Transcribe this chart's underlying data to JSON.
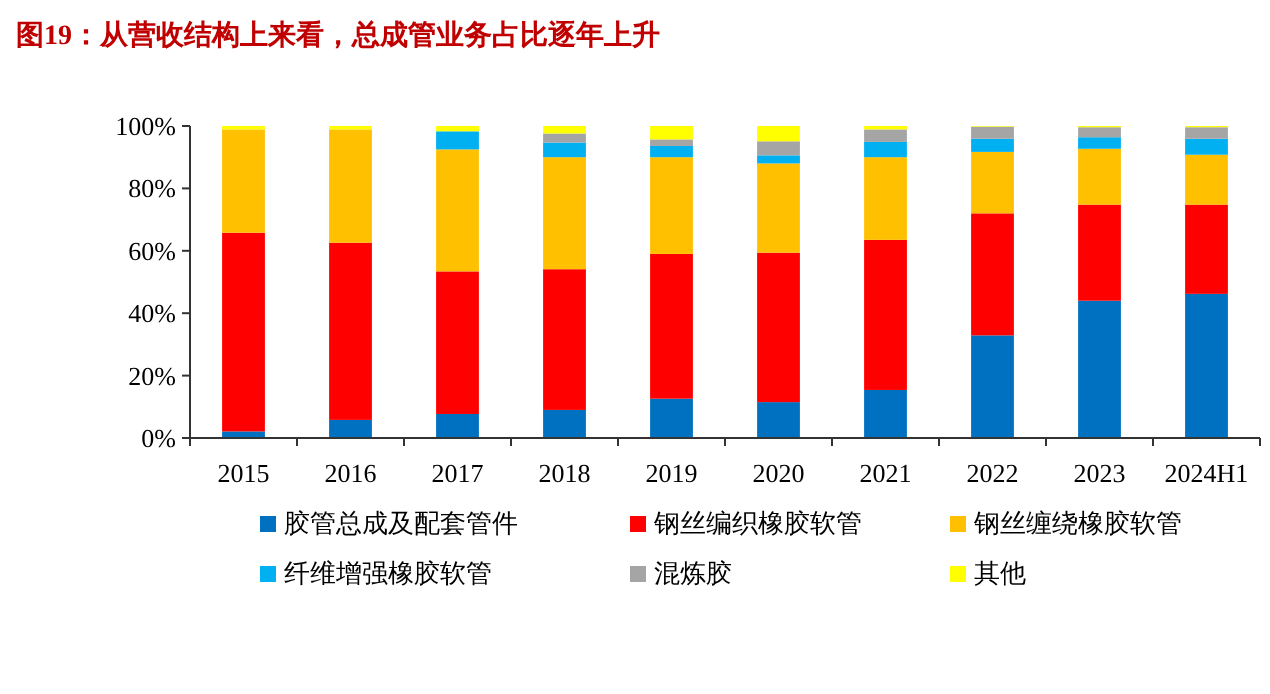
{
  "chart_data": {
    "type": "bar",
    "title": "图19：从营收结构上来看，总成管业务占比逐年上升",
    "categories": [
      "2015",
      "2016",
      "2017",
      "2018",
      "2019",
      "2020",
      "2021",
      "2022",
      "2023",
      "2024H1"
    ],
    "stacked": true,
    "legend": "bottom",
    "ylim": [
      0,
      100
    ],
    "yticks": [
      {
        "value": 0,
        "label": "0%"
      },
      {
        "value": 20,
        "label": "20%"
      },
      {
        "value": 40,
        "label": "40%"
      },
      {
        "value": 60,
        "label": "60%"
      },
      {
        "value": 80,
        "label": "80%"
      },
      {
        "value": 100,
        "label": "100%"
      }
    ],
    "series": [
      {
        "name": "胶管总成及配套管件",
        "color": "#0070c0",
        "values": [
          2.1,
          5.8,
          7.7,
          9.0,
          12.6,
          11.5,
          15.4,
          32.9,
          44.0,
          46.2
        ]
      },
      {
        "name": "钢丝编织橡胶软管",
        "color": "#ff0000",
        "values": [
          63.7,
          56.8,
          45.7,
          45.1,
          46.4,
          47.9,
          48.1,
          39.1,
          30.8,
          28.6
        ]
      },
      {
        "name": "钢丝缠绕橡胶软管",
        "color": "#ffc000",
        "values": [
          33.1,
          36.3,
          39.1,
          35.9,
          31.0,
          28.6,
          26.5,
          19.7,
          17.9,
          16.0
        ]
      },
      {
        "name": "纤维增强橡胶软管",
        "color": "#00b0f0",
        "values": [
          0,
          0,
          5.8,
          4.7,
          3.6,
          2.6,
          4.9,
          4.2,
          3.7,
          5.1
        ]
      },
      {
        "name": "混炼胶",
        "color": "#a5a5a5",
        "values": [
          0,
          0,
          0,
          2.9,
          2.1,
          4.5,
          4.0,
          3.9,
          3.2,
          3.7
        ]
      },
      {
        "name": "其他",
        "color": "#ffff00",
        "values": [
          1.1,
          1.1,
          1.7,
          2.4,
          4.3,
          4.9,
          1.1,
          0.2,
          0.4,
          0.4
        ]
      }
    ]
  }
}
